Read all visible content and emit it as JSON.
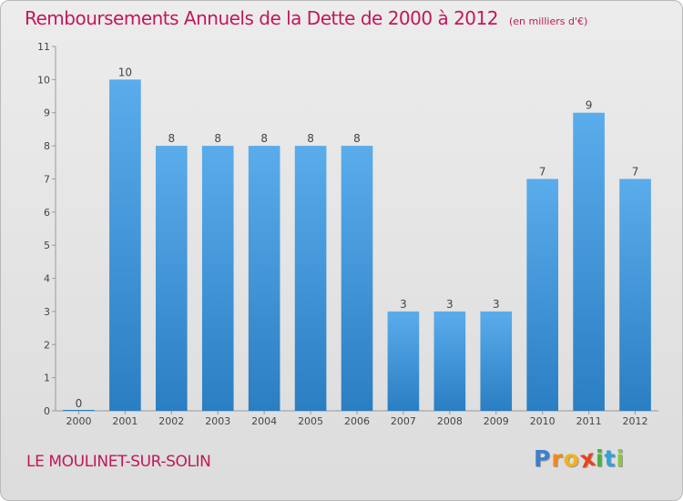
{
  "header": {
    "title": "Remboursements Annuels de la Dette de 2000 à 2012",
    "unit_note": "(en milliers d'€)"
  },
  "footer": {
    "commune": "LE MOULINET-SUR-SOLIN",
    "logo": {
      "letters": [
        "P",
        "r",
        "o",
        "x",
        "i",
        "t",
        "i"
      ],
      "colors": [
        "#3a7fd0",
        "#f08a1c",
        "#f2b21c",
        "#e8431f",
        "#4cae3c",
        "#33a1d6",
        "#8dc63f"
      ]
    }
  },
  "chart_data": {
    "type": "bar",
    "categories": [
      "2000",
      "2001",
      "2002",
      "2003",
      "2004",
      "2005",
      "2006",
      "2007",
      "2008",
      "2009",
      "2010",
      "2011",
      "2012"
    ],
    "values": [
      0,
      10,
      8,
      8,
      8,
      8,
      8,
      3,
      3,
      3,
      7,
      9,
      7
    ],
    "data_labels": [
      "0",
      "10",
      "8",
      "8",
      "8",
      "8",
      "8",
      "3",
      "3",
      "3",
      "7",
      "9",
      "7"
    ],
    "yticks": [
      0,
      1,
      2,
      3,
      4,
      5,
      6,
      7,
      8,
      9,
      10,
      11
    ],
    "ylim": [
      0,
      11
    ],
    "grid": false,
    "bar_color_top": "#5aaceb",
    "bar_color_bottom": "#2a7ec2"
  }
}
